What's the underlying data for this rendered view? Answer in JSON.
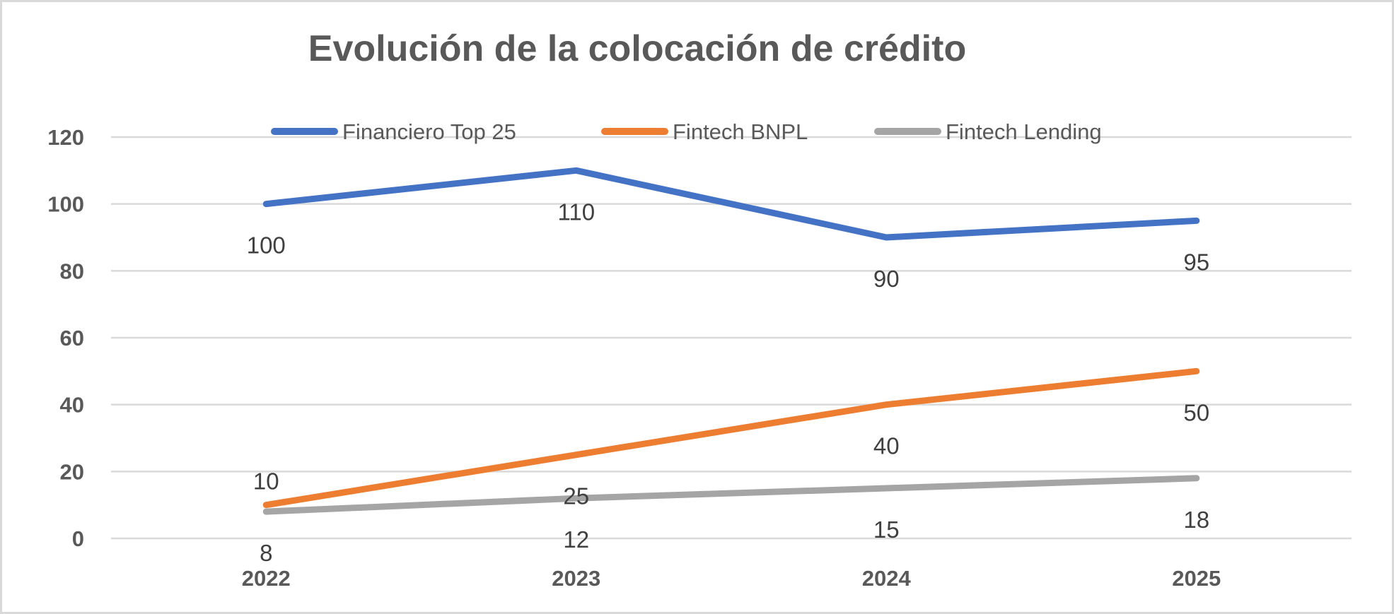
{
  "chart_data": {
    "type": "line",
    "title": "Evolución de la colocación de crédito",
    "xlabel": "",
    "ylabel": "",
    "categories": [
      "2022",
      "2023",
      "2024",
      "2025"
    ],
    "series": [
      {
        "name": "Financiero Top 25",
        "values": [
          100,
          110,
          90,
          95
        ],
        "color": "#4472C4"
      },
      {
        "name": "Fintech BNPL",
        "values": [
          10,
          25,
          40,
          50
        ],
        "color": "#ED7D31"
      },
      {
        "name": "Fintech Lending",
        "values": [
          8,
          12,
          15,
          18
        ],
        "color": "#A5A5A5"
      }
    ],
    "ylim": [
      0,
      120
    ],
    "yticks": [
      "0",
      "20",
      "40",
      "60",
      "80",
      "100",
      "120"
    ],
    "grid": true,
    "legend_position": "top",
    "data_labels": true
  }
}
